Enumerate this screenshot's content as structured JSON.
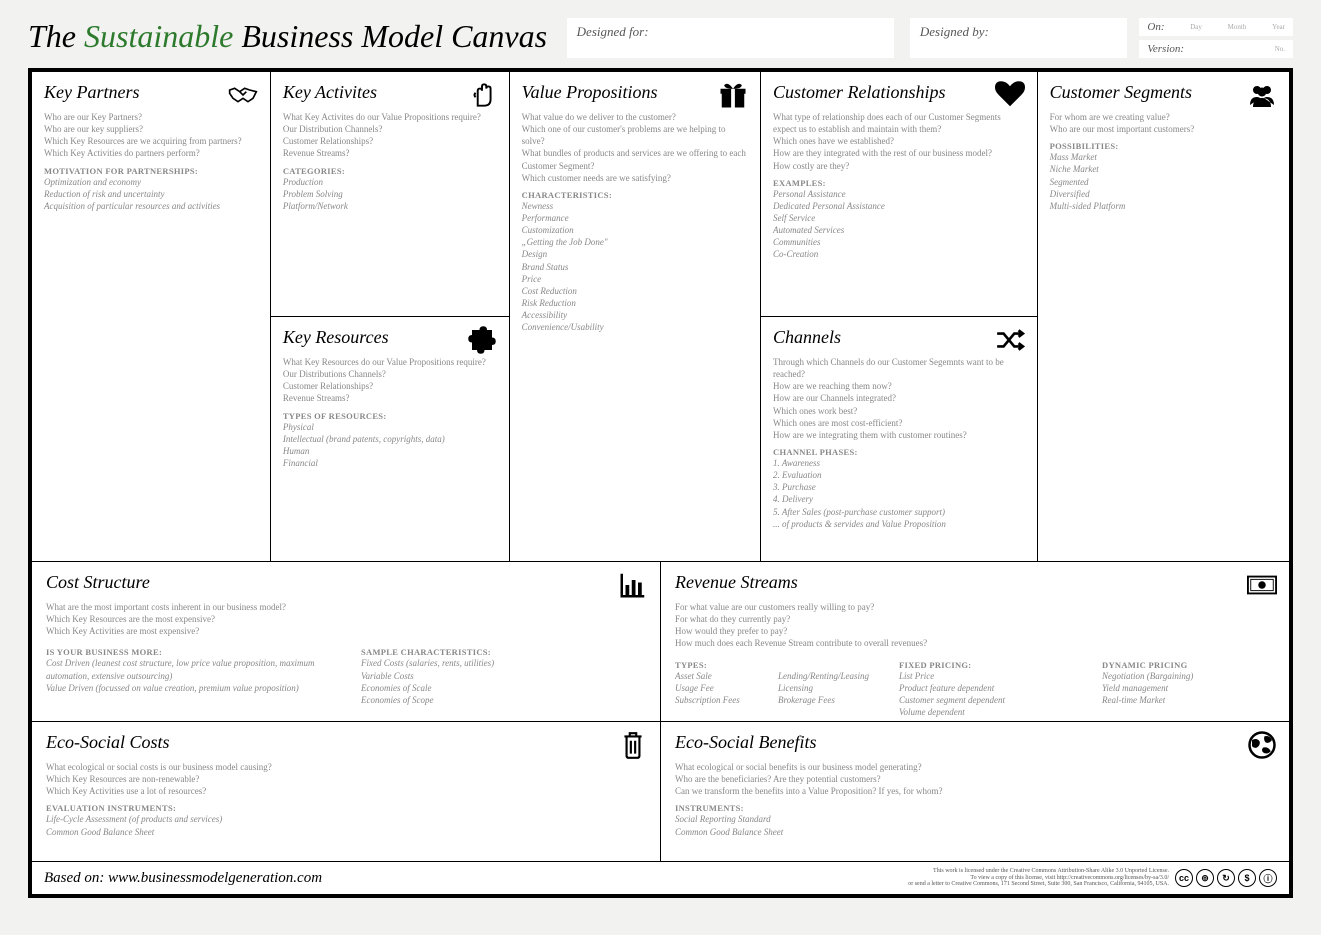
{
  "header": {
    "title_prefix": "The ",
    "title_highlight": "Sustainable",
    "title_suffix": " Business Model Canvas",
    "designed_for_label": "Designed for:",
    "designed_by_label": "Designed by:",
    "on_label": "On:",
    "version_label": "Version:",
    "day": "Day",
    "month": "Month",
    "year": "Year",
    "no": "No."
  },
  "cells": {
    "key_partners": {
      "title": "Key Partners",
      "prompts": [
        "Who are our Key Partners?",
        "Who are our key suppliers?",
        "Which Key Resources are we acquiring from partners?",
        "Which Key Activities do partners perform?"
      ],
      "subhead": "MOTIVATION FOR PARTNERSHIPS:",
      "items": [
        "Optimization and economy",
        "Reduction of risk and uncertainty",
        "Acquisition of particular resources and activities"
      ]
    },
    "key_activities": {
      "title": "Key Activites",
      "prompts": [
        "What Key Activites do our Value Propositions require?",
        "Our Distribution Channels?",
        "Customer Relationships?",
        "Revenue Streams?"
      ],
      "subhead": "CATEGORIES:",
      "items": [
        "Production",
        "Problem Solving",
        "Platform/Network"
      ]
    },
    "key_resources": {
      "title": "Key Resources",
      "prompts": [
        "What Key Resources do our Value Propositions require?",
        "Our Distributions Channels?",
        "Customer Relationships?",
        "Revenue Streams?"
      ],
      "subhead": "TYPES OF RESOURCES:",
      "items": [
        "Physical",
        "Intellectual (brand patents, copyrights, data)",
        "Human",
        "Financial"
      ]
    },
    "value_propositions": {
      "title": "Value Propositions",
      "prompts": [
        "What value do we deliver to the customer?",
        "Which one of our customer's problems are we helping to solve?",
        "What bundles of products and services are we offering to each Customer Segment?",
        "Which customer needs are we satisfying?"
      ],
      "subhead": "CHARACTERISTICS:",
      "items": [
        "Newness",
        "Performance",
        "Customization",
        "„Getting the Job Done\"",
        "Design",
        "Brand Status",
        "Price",
        "Cost Reduction",
        "Risk Reduction",
        "Accessibility",
        "Convenience/Usability"
      ]
    },
    "customer_relationships": {
      "title": "Customer Relationships",
      "prompts": [
        "What type of relationship does each of our Customer Segments expect us to establish and maintain with them?",
        "Which ones have we established?",
        "How are they integrated with the rest of our business model?",
        "How costly are they?"
      ],
      "subhead": "EXAMPLES:",
      "items": [
        "Personal Assistance",
        "Dedicated Personal Assistance",
        "Self Service",
        "Automated Services",
        "Communities",
        "Co-Creation"
      ]
    },
    "channels": {
      "title": "Channels",
      "prompts": [
        "Through which Channels do our Customer Segemnts want to be reached?",
        "How are we reaching them now?",
        "How are our Channels integrated?",
        "Which ones work best?",
        "Which ones are most cost-efficient?",
        "How are we integrating them with customer routines?"
      ],
      "subhead": "CHANNEL PHASES:",
      "items": [
        "1. Awareness",
        "2. Evaluation",
        "3. Purchase",
        "4. Delivery",
        "5. After Sales (post-purchase customer support)",
        "... of products & servides and Value Proposition"
      ]
    },
    "customer_segments": {
      "title": "Customer Segments",
      "prompts": [
        "For whom are we creating value?",
        "Who are our most important customers?"
      ],
      "subhead": "POSSIBILITIES:",
      "items": [
        "Mass Market",
        "Niche Market",
        "Segmented",
        "Diversified",
        "Multi-sided Platform"
      ]
    },
    "cost_structure": {
      "title": "Cost Structure",
      "prompts": [
        "What are the most important costs inherent in our business model?",
        "Which Key Resources are the most expensive?",
        "Which Key Activities are most expensive?"
      ],
      "subhead": "IS YOUR BUSINESS MORE:",
      "items": [
        "Cost Driven (leanest cost structure, low price value proposition, maximum automation, extensive outsourcing)",
        "Value Driven (focussed on value creation, premium value proposition)"
      ],
      "subhead2": "SAMPLE CHARACTERISTICS:",
      "items2": [
        "Fixed Costs (salaries, rents, utilities)",
        "Variable Costs",
        "Economies of Scale",
        "Economies of Scope"
      ]
    },
    "revenue_streams": {
      "title": "Revenue Streams",
      "prompts": [
        "For what value are our customers really willing to pay?",
        "For what do they currently pay?",
        "How would they prefer to pay?",
        "How much does each Revenue Stream contribute to overall revenues?"
      ],
      "types_head": "TYPES:",
      "types": [
        "Asset Sale",
        "Usage Fee",
        "Subscription Fees",
        "Lending/Renting/Leasing",
        "Licensing",
        "Brokerage Fees"
      ],
      "fixed_head": "FIXED PRICING:",
      "fixed": [
        "List Price",
        "Product feature dependent",
        "Customer segment dependent",
        "Volume dependent"
      ],
      "dynamic_head": "DYNAMIC PRICING",
      "dynamic": [
        "Negotiation (Bargaining)",
        "Yield management",
        "Real-time Market"
      ]
    },
    "eco_costs": {
      "title": "Eco-Social Costs",
      "prompts": [
        "What ecological or social costs is our business model causing?",
        "Which Key Resources are non-renewable?",
        "Which Key Activities use a lot of resources?"
      ],
      "subhead": "EVALUATION INSTRUMENTS:",
      "items": [
        "Life-Cycle Assessment (of products and services)",
        "Common Good Balance Sheet"
      ]
    },
    "eco_benefits": {
      "title": "Eco-Social Benefits",
      "prompts": [
        "What ecological or social benefits is our business model generating?",
        "Who are the beneficiaries? Are they potential customers?",
        "Can we transform the benefits into a Value Proposition? If yes, for whom?"
      ],
      "subhead": "INSTRUMENTS:",
      "items": [
        "Social Reporting Standard",
        "Common Good Balance Sheet"
      ]
    }
  },
  "footer": {
    "based_on": "Based on: www.businessmodelgeneration.com",
    "cc_text_1": "This work is licensed under the Creative Commons Attribution-Share Alike 3.0 Unported License.",
    "cc_text_2": "To view a copy of this license, visit http://creativecommons.org/licenses/by-sa/3.0/",
    "cc_text_3": "or send a letter to Creative Commons, 171 Second Street, Suite 300, San Francisco, California, 94105, USA."
  }
}
